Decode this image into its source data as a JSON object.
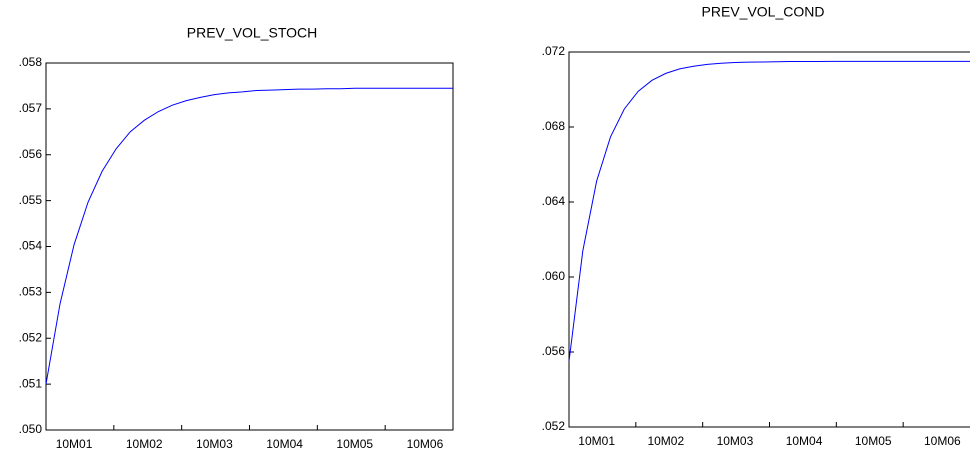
{
  "chart_data": [
    {
      "type": "line",
      "title": "PREV_VOL_STOCH",
      "categories": [
        null,
        null,
        "10M01",
        null,
        null,
        null,
        null,
        "10M02",
        null,
        null,
        null,
        null,
        "10M03",
        null,
        null,
        null,
        null,
        "10M04",
        null,
        null,
        null,
        null,
        "10M05",
        null,
        null,
        null,
        null,
        "10M06",
        null,
        null
      ],
      "values": [
        0.051,
        0.05275,
        0.05404,
        0.05497,
        0.05564,
        0.05613,
        0.0565,
        0.05675,
        0.05694,
        0.05708,
        0.05718,
        0.05725,
        0.05731,
        0.05735,
        0.05737,
        0.0574,
        0.05741,
        0.05742,
        0.05743,
        0.05743,
        0.05744,
        0.05744,
        0.05745,
        0.05745,
        0.05745,
        0.05745,
        0.05745,
        0.05745,
        0.05745,
        0.05745
      ],
      "color": "#0000ff",
      "ylim": [
        0.05,
        0.058
      ],
      "yticks": [
        {
          "value": 0.05,
          "label": ".050"
        },
        {
          "value": 0.051,
          "label": ".051"
        },
        {
          "value": 0.052,
          "label": ".052"
        },
        {
          "value": 0.053,
          "label": ".053"
        },
        {
          "value": 0.054,
          "label": ".054"
        },
        {
          "value": 0.055,
          "label": ".055"
        },
        {
          "value": 0.056,
          "label": ".056"
        },
        {
          "value": 0.057,
          "label": ".057"
        },
        {
          "value": 0.058,
          "label": ".058"
        }
      ]
    },
    {
      "type": "line",
      "title": "PREV_VOL_COND",
      "categories": [
        null,
        null,
        "10M01",
        null,
        null,
        null,
        null,
        "10M02",
        null,
        null,
        null,
        null,
        "10M03",
        null,
        null,
        null,
        null,
        "10M04",
        null,
        null,
        null,
        null,
        "10M05",
        null,
        null,
        null,
        null,
        "10M06",
        null,
        null
      ],
      "values": [
        0.0555,
        0.0614,
        0.06512,
        0.06747,
        0.06896,
        0.0699,
        0.07049,
        0.07086,
        0.0711,
        0.07124,
        0.07134,
        0.0714,
        0.07144,
        0.07146,
        0.07147,
        0.07148,
        0.07149,
        0.07149,
        0.07149,
        0.0715,
        0.0715,
        0.0715,
        0.0715,
        0.0715,
        0.0715,
        0.0715,
        0.0715,
        0.0715,
        0.0715,
        0.0715
      ],
      "color": "#0000ff",
      "ylim": [
        0.052,
        0.072
      ],
      "yticks": [
        {
          "value": 0.052,
          "label": ".052"
        },
        {
          "value": 0.056,
          "label": ".056"
        },
        {
          "value": 0.06,
          "label": ".060"
        },
        {
          "value": 0.064,
          "label": ".064"
        },
        {
          "value": 0.068,
          "label": ".068"
        },
        {
          "value": 0.072,
          "label": ".072"
        }
      ]
    }
  ]
}
